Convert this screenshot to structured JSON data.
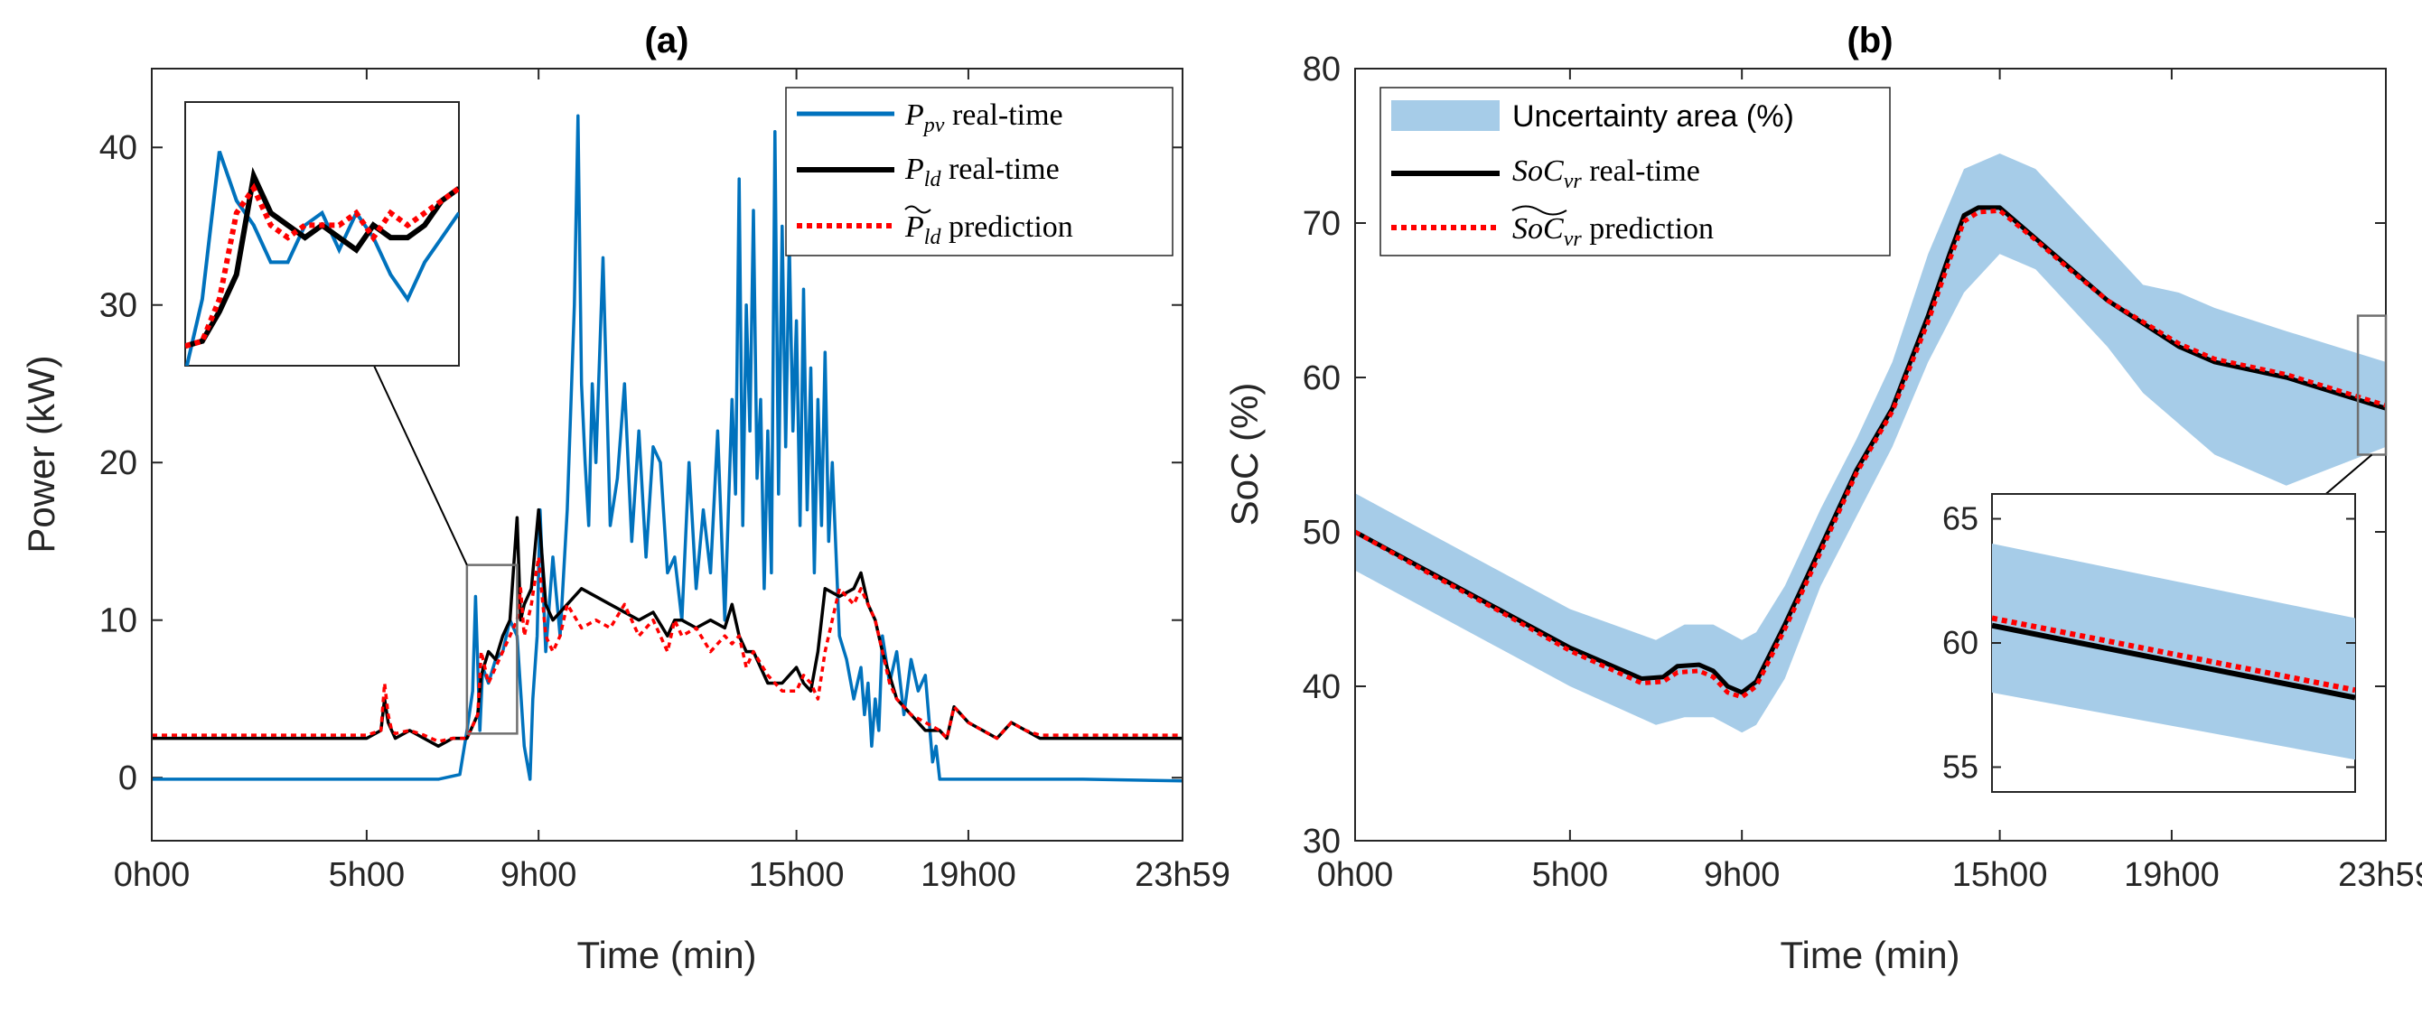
{
  "chart_data": [
    {
      "type": "line",
      "title": "(a)",
      "xlabel": "Time (min)",
      "ylabel": "Power (kW)",
      "xlim": [
        0,
        1439
      ],
      "ylim": [
        -4,
        45
      ],
      "xticks": [
        0,
        300,
        540,
        900,
        1140,
        1439
      ],
      "xtick_labels": [
        "0h00",
        "5h00",
        "9h00",
        "15h00",
        "19h00",
        "23h59"
      ],
      "yticks": [
        0,
        10,
        20,
        30,
        40
      ],
      "ytick_labels": [
        "0",
        "10",
        "20",
        "30",
        "40"
      ],
      "legend_position": "top-right",
      "series": [
        {
          "name": "P_pv real-time",
          "legend_main": "P",
          "legend_sub": "pv",
          "legend_rest": " real-time",
          "color": "#0072BD",
          "style": "solid",
          "x": [
            0,
            200,
            400,
            430,
            440,
            448,
            452,
            458,
            462,
            470,
            480,
            490,
            500,
            510,
            520,
            528,
            532,
            538,
            542,
            550,
            560,
            570,
            580,
            590,
            595,
            600,
            605,
            610,
            615,
            620,
            630,
            640,
            650,
            660,
            670,
            680,
            690,
            700,
            710,
            720,
            730,
            740,
            750,
            760,
            770,
            780,
            790,
            800,
            810,
            815,
            820,
            825,
            830,
            835,
            840,
            845,
            850,
            855,
            860,
            865,
            870,
            875,
            880,
            885,
            890,
            895,
            900,
            905,
            910,
            915,
            920,
            925,
            930,
            935,
            940,
            945,
            950,
            960,
            970,
            980,
            990,
            995,
            1000,
            1005,
            1010,
            1015,
            1020,
            1030,
            1040,
            1050,
            1060,
            1070,
            1080,
            1090,
            1095,
            1100,
            1150,
            1200,
            1300,
            1439
          ],
          "y": [
            -0.1,
            -0.1,
            -0.1,
            0.2,
            3.0,
            5.5,
            11.5,
            3.0,
            7.0,
            6.0,
            7.5,
            8.0,
            10.0,
            9.0,
            2.0,
            -0.1,
            5.0,
            9.0,
            17.0,
            8.0,
            14.0,
            9.0,
            17.0,
            30.0,
            42.0,
            25.0,
            20.0,
            16.0,
            25.0,
            20.0,
            33.0,
            16.0,
            19.0,
            25.0,
            15.0,
            22.0,
            14.0,
            21.0,
            20.0,
            13.0,
            14.0,
            10.0,
            20.0,
            12.0,
            17.0,
            13.0,
            22.0,
            10.0,
            24.0,
            18.0,
            38.0,
            16.0,
            30.0,
            22.0,
            36.0,
            19.0,
            24.0,
            12.0,
            22.0,
            13.0,
            41.0,
            18.0,
            35.0,
            21.0,
            34.0,
            22.0,
            29.0,
            16.0,
            31.0,
            17.0,
            26.0,
            13.0,
            24.0,
            16.0,
            27.0,
            15.0,
            20.0,
            9.0,
            7.5,
            5.0,
            7.0,
            4.0,
            6.0,
            2.0,
            5.0,
            3.0,
            9.0,
            6.0,
            8.0,
            4.0,
            7.5,
            5.5,
            6.5,
            1.0,
            2.0,
            -0.1,
            -0.1,
            -0.1,
            -0.1,
            -0.2
          ]
        },
        {
          "name": "P_ld real-time",
          "legend_main": "P",
          "legend_sub": "ld",
          "legend_rest": " real-time",
          "color": "#000000",
          "style": "solid",
          "x": [
            0,
            100,
            200,
            300,
            320,
            325,
            330,
            335,
            340,
            360,
            380,
            400,
            420,
            440,
            455,
            460,
            470,
            480,
            490,
            500,
            510,
            515,
            520,
            530,
            540,
            550,
            560,
            580,
            600,
            640,
            680,
            700,
            720,
            730,
            740,
            760,
            780,
            800,
            810,
            820,
            830,
            840,
            860,
            880,
            900,
            910,
            920,
            930,
            940,
            960,
            980,
            990,
            1000,
            1010,
            1020,
            1030,
            1040,
            1060,
            1080,
            1100,
            1110,
            1120,
            1140,
            1160,
            1180,
            1200,
            1220,
            1240,
            1260,
            1300,
            1439
          ],
          "y": [
            2.5,
            2.5,
            2.5,
            2.5,
            3.0,
            5.0,
            3.5,
            3.0,
            2.5,
            3.0,
            2.5,
            2.0,
            2.5,
            2.5,
            4.0,
            6.5,
            8.0,
            7.5,
            9.0,
            10.0,
            16.5,
            10.0,
            11.0,
            12.0,
            17.0,
            11.0,
            10.0,
            11.0,
            12.0,
            11.0,
            10.0,
            10.5,
            9.0,
            10.0,
            10.0,
            9.5,
            10.0,
            9.5,
            11.0,
            9.0,
            8.0,
            8.0,
            6.0,
            6.0,
            7.0,
            6.0,
            5.5,
            8.0,
            12.0,
            11.5,
            12.0,
            13.0,
            11.0,
            10.0,
            8.0,
            6.5,
            5.0,
            4.0,
            3.0,
            3.0,
            2.5,
            4.5,
            3.5,
            3.0,
            2.5,
            3.5,
            3.0,
            2.5,
            2.5,
            2.5,
            2.5
          ]
        },
        {
          "name": "P_ld prediction",
          "legend_main": "P",
          "legend_sub": "ld",
          "legend_rest": " prediction",
          "color": "#FF0000",
          "style": "dotted",
          "x": [
            0,
            100,
            200,
            300,
            320,
            325,
            330,
            335,
            340,
            360,
            380,
            400,
            420,
            440,
            455,
            460,
            470,
            480,
            490,
            500,
            510,
            515,
            520,
            530,
            540,
            550,
            560,
            570,
            580,
            600,
            620,
            640,
            660,
            680,
            700,
            720,
            730,
            740,
            760,
            780,
            800,
            810,
            820,
            830,
            840,
            860,
            880,
            900,
            910,
            920,
            930,
            940,
            960,
            980,
            990,
            1000,
            1010,
            1020,
            1030,
            1040,
            1060,
            1080,
            1100,
            1110,
            1120,
            1140,
            1160,
            1180,
            1200,
            1220,
            1240,
            1260,
            1300,
            1439
          ],
          "y": [
            2.7,
            2.7,
            2.7,
            2.7,
            3.0,
            6.0,
            4.0,
            3.0,
            2.8,
            3.0,
            2.7,
            2.3,
            2.5,
            2.5,
            4.0,
            8.0,
            6.0,
            7.0,
            8.0,
            9.0,
            10.0,
            12.0,
            9.0,
            11.0,
            14.0,
            9.0,
            8.0,
            9.0,
            11.0,
            9.5,
            10.0,
            9.5,
            11.0,
            9.0,
            10.0,
            8.0,
            10.0,
            9.0,
            9.5,
            8.0,
            9.0,
            8.5,
            9.0,
            7.0,
            8.0,
            6.5,
            5.5,
            5.5,
            6.5,
            6.0,
            5.0,
            8.0,
            12.0,
            11.0,
            12.0,
            11.0,
            10.0,
            8.0,
            6.0,
            5.0,
            4.0,
            3.5,
            3.0,
            2.5,
            4.5,
            3.5,
            3.0,
            2.5,
            3.5,
            3.0,
            2.7,
            2.7,
            2.7,
            2.7
          ]
        }
      ],
      "zoom_window": {
        "xlim": [
          440,
          510
        ],
        "ylim": [
          2.8,
          13.5
        ]
      },
      "inset": {
        "ylim": [
          2.8,
          13.5
        ],
        "pv": [
          2.5,
          5.5,
          11.5,
          9.5,
          8.5,
          7.0,
          7.0,
          8.5,
          9.0,
          7.5,
          9.0,
          8.0,
          6.5,
          5.5,
          7.0,
          8.0,
          9.0
        ],
        "ld": [
          3.6,
          3.8,
          5.0,
          6.5,
          10.5,
          9.0,
          8.5,
          8.0,
          8.5,
          8.0,
          7.5,
          8.5,
          8.0,
          8.0,
          8.5,
          9.5,
          10.0
        ],
        "pred": [
          3.6,
          3.8,
          5.5,
          9.0,
          10.0,
          8.5,
          8.0,
          8.5,
          8.5,
          8.5,
          9.0,
          8.0,
          9.0,
          8.5,
          9.0,
          9.5,
          10.0
        ]
      }
    },
    {
      "type": "area",
      "title": "(b)",
      "xlabel": "Time (min)",
      "ylabel": "SoC (%)",
      "xlim": [
        0,
        1439
      ],
      "ylim": [
        30,
        80
      ],
      "xticks": [
        0,
        300,
        540,
        900,
        1140,
        1439
      ],
      "xtick_labels": [
        "0h00",
        "5h00",
        "9h00",
        "15h00",
        "19h00",
        "23h59"
      ],
      "yticks": [
        30,
        40,
        50,
        60,
        70,
        80
      ],
      "ytick_labels": [
        "30",
        "40",
        "50",
        "60",
        "70",
        "80"
      ],
      "legend_position": "top-left",
      "uncertainty": {
        "name": "Uncertainty area (%)",
        "color": "#A6CCE8",
        "x": [
          0,
          100,
          200,
          300,
          420,
          460,
          500,
          540,
          560,
          600,
          650,
          700,
          750,
          800,
          850,
          900,
          950,
          1000,
          1050,
          1100,
          1150,
          1200,
          1300,
          1439
        ],
        "lower": [
          47.5,
          45.0,
          42.5,
          40.0,
          37.5,
          38.0,
          38.0,
          37.0,
          37.5,
          40.5,
          46.5,
          51.0,
          55.5,
          61.0,
          65.5,
          68.0,
          67.0,
          64.5,
          62.0,
          59.0,
          57.0,
          55.0,
          53.0,
          55.5
        ],
        "upper": [
          52.5,
          50.0,
          47.5,
          45.0,
          43.0,
          44.0,
          44.0,
          43.0,
          43.5,
          46.5,
          51.5,
          56.0,
          61.0,
          68.0,
          73.5,
          74.5,
          73.5,
          71.0,
          68.5,
          66.0,
          65.5,
          64.5,
          63.0,
          61.0
        ]
      },
      "series": [
        {
          "name": "SoC_vr real-time",
          "legend_main": "SoC",
          "legend_sub": "vr",
          "legend_rest": " real-time",
          "color": "#000000",
          "style": "solid",
          "x": [
            0,
            100,
            200,
            300,
            400,
            430,
            450,
            480,
            500,
            520,
            540,
            560,
            600,
            650,
            700,
            750,
            800,
            830,
            850,
            870,
            900,
            950,
            1000,
            1050,
            1100,
            1150,
            1200,
            1300,
            1439
          ],
          "y": [
            50.0,
            47.5,
            45.0,
            42.5,
            40.5,
            40.6,
            41.3,
            41.4,
            41.0,
            40.0,
            39.6,
            40.3,
            44.0,
            49.0,
            54.0,
            58.0,
            64.0,
            68.0,
            70.5,
            71.0,
            71.0,
            69.0,
            67.0,
            65.0,
            63.5,
            62.0,
            61.0,
            60.0,
            58.0
          ]
        },
        {
          "name": "SoC_vr prediction",
          "legend_main": "SoC",
          "legend_sub": "vr",
          "legend_rest": " prediction",
          "color": "#FF0000",
          "style": "dotted",
          "x": [
            0,
            100,
            200,
            300,
            400,
            430,
            450,
            480,
            500,
            520,
            540,
            560,
            600,
            650,
            700,
            750,
            800,
            830,
            850,
            870,
            900,
            950,
            1000,
            1050,
            1100,
            1150,
            1200,
            1300,
            1439
          ],
          "y": [
            50.0,
            47.4,
            44.9,
            42.3,
            40.2,
            40.3,
            40.9,
            41.0,
            40.6,
            39.6,
            39.3,
            40.0,
            43.7,
            48.7,
            53.8,
            57.8,
            63.6,
            67.6,
            70.1,
            70.7,
            70.8,
            68.9,
            66.9,
            65.0,
            63.6,
            62.2,
            61.2,
            60.2,
            58.2
          ]
        }
      ],
      "zoom_window": {
        "xlim": [
          1400,
          1439
        ],
        "ylim": [
          55,
          64
        ]
      },
      "inset": {
        "xlim": [
          1390,
          1439
        ],
        "ylim": [
          54,
          66
        ],
        "yticks": [
          55,
          60,
          65
        ],
        "ytick_labels": [
          "55",
          "60",
          "65"
        ],
        "band_x": [
          1390,
          1439
        ],
        "band_lower": [
          58.0,
          55.3
        ],
        "band_upper": [
          64.0,
          61.0
        ],
        "line_x": [
          1390,
          1439
        ],
        "line_y": [
          60.7,
          57.8
        ],
        "pred_y": [
          61.0,
          58.1
        ]
      }
    }
  ]
}
